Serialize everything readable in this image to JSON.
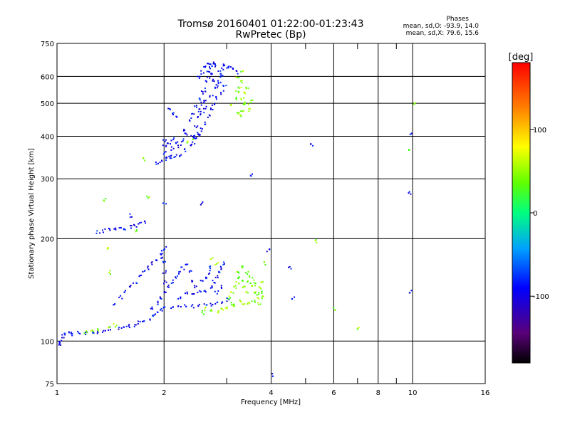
{
  "chart_data": {
    "type": "scatter",
    "title": "Tromsø 20160401 01:22:00-01:23:43",
    "subtitle": "RwPretec (Bp)",
    "xlabel": "Frequency [MHz]",
    "ylabel": "Stationary phase Virtual Height [km]",
    "x_scale": "log",
    "y_scale": "log",
    "xlim": [
      1,
      16
    ],
    "ylim": [
      75,
      750
    ],
    "x_ticks": [
      1,
      2,
      4,
      6,
      8,
      10,
      16
    ],
    "x_minor": [
      3,
      5,
      7,
      9
    ],
    "y_ticks": [
      75,
      100,
      200,
      300,
      400,
      500,
      600,
      750
    ],
    "grid": true,
    "stats": {
      "header": "Phases",
      "line1": "mean, sd,O: -93.9, 14.0",
      "line2": "mean, sd,X:  79.6, 15.6"
    },
    "colorbar": {
      "label": "[deg]",
      "range": [
        -180,
        180
      ],
      "ticks": [
        100,
        0,
        -100
      ]
    },
    "series": [
      {
        "name": "O",
        "mean_phase": -93.9,
        "sd": 14.0,
        "points": [
          [
            1.01,
            98
          ],
          [
            1.02,
            100
          ],
          [
            1.03,
            104
          ],
          [
            1.05,
            105
          ],
          [
            1.08,
            106
          ],
          [
            1.1,
            105
          ],
          [
            1.15,
            106
          ],
          [
            1.2,
            106
          ],
          [
            1.25,
            107
          ],
          [
            1.3,
            107
          ],
          [
            1.35,
            108
          ],
          [
            1.4,
            109
          ],
          [
            1.5,
            109
          ],
          [
            1.55,
            110
          ],
          [
            1.6,
            111
          ],
          [
            1.65,
            112
          ],
          [
            1.7,
            114
          ],
          [
            1.75,
            115
          ],
          [
            1.8,
            117
          ],
          [
            1.85,
            120
          ],
          [
            1.9,
            122
          ],
          [
            1.95,
            124
          ],
          [
            2.0,
            125
          ],
          [
            2.1,
            126
          ],
          [
            2.2,
            127
          ],
          [
            2.3,
            127
          ],
          [
            2.4,
            127
          ],
          [
            2.5,
            128
          ],
          [
            2.6,
            128
          ],
          [
            2.7,
            129
          ],
          [
            2.8,
            130
          ],
          [
            2.9,
            131
          ],
          [
            3.0,
            133
          ],
          [
            1.45,
            128
          ],
          [
            1.5,
            135
          ],
          [
            1.55,
            140
          ],
          [
            1.6,
            145
          ],
          [
            1.65,
            150
          ],
          [
            1.7,
            155
          ],
          [
            1.75,
            160
          ],
          [
            1.8,
            165
          ],
          [
            1.85,
            170
          ],
          [
            1.9,
            175
          ],
          [
            1.95,
            180
          ],
          [
            1.98,
            185
          ],
          [
            1.85,
            125
          ],
          [
            1.9,
            130
          ],
          [
            1.95,
            135
          ],
          [
            2.0,
            140
          ],
          [
            2.0,
            150
          ],
          [
            2.0,
            160
          ],
          [
            2.0,
            170
          ],
          [
            2.05,
            145
          ],
          [
            2.1,
            150
          ],
          [
            2.15,
            155
          ],
          [
            2.2,
            160
          ],
          [
            2.25,
            165
          ],
          [
            2.3,
            170
          ],
          [
            2.35,
            160
          ],
          [
            2.4,
            150
          ],
          [
            2.45,
            145
          ],
          [
            2.5,
            140
          ],
          [
            2.55,
            150
          ],
          [
            2.6,
            155
          ],
          [
            2.65,
            160
          ],
          [
            2.7,
            165
          ],
          [
            2.75,
            150
          ],
          [
            2.8,
            155
          ],
          [
            2.85,
            160
          ],
          [
            2.9,
            165
          ],
          [
            2.95,
            170
          ],
          [
            2.6,
            140
          ],
          [
            2.7,
            145
          ],
          [
            2.8,
            140
          ],
          [
            2.9,
            145
          ],
          [
            2.2,
            135
          ],
          [
            2.3,
            140
          ],
          [
            2.4,
            138
          ],
          [
            1.3,
            210
          ],
          [
            1.35,
            212
          ],
          [
            1.4,
            213
          ],
          [
            1.45,
            214
          ],
          [
            1.5,
            215
          ],
          [
            1.55,
            216
          ],
          [
            1.6,
            218
          ],
          [
            1.65,
            220
          ],
          [
            1.7,
            222
          ],
          [
            1.75,
            224
          ],
          [
            1.6,
            235
          ],
          [
            1.9,
            335
          ],
          [
            1.95,
            340
          ],
          [
            2.0,
            345
          ],
          [
            2.05,
            348
          ],
          [
            2.1,
            350
          ],
          [
            2.15,
            352
          ],
          [
            2.2,
            355
          ],
          [
            2.3,
            365
          ],
          [
            2.35,
            380
          ],
          [
            2.4,
            400
          ],
          [
            2.45,
            430
          ],
          [
            2.5,
            460
          ],
          [
            2.55,
            500
          ],
          [
            2.6,
            550
          ],
          [
            2.65,
            600
          ],
          [
            2.7,
            640
          ],
          [
            2.0,
            360
          ],
          [
            2.0,
            375
          ],
          [
            2.0,
            390
          ],
          [
            2.05,
            380
          ],
          [
            2.1,
            370
          ],
          [
            2.1,
            395
          ],
          [
            2.15,
            385
          ],
          [
            2.2,
            375
          ],
          [
            2.25,
            390
          ],
          [
            2.3,
            410
          ],
          [
            2.25,
            420
          ],
          [
            2.35,
            450
          ],
          [
            2.4,
            470
          ],
          [
            2.45,
            490
          ],
          [
            2.5,
            520
          ],
          [
            2.55,
            540
          ],
          [
            2.6,
            580
          ],
          [
            2.65,
            620
          ],
          [
            2.7,
            650
          ],
          [
            2.75,
            660
          ],
          [
            2.8,
            650
          ],
          [
            2.85,
            620
          ],
          [
            2.9,
            600
          ],
          [
            2.95,
            560
          ],
          [
            2.9,
            540
          ],
          [
            2.8,
            520
          ],
          [
            2.75,
            500
          ],
          [
            2.7,
            480
          ],
          [
            2.65,
            460
          ],
          [
            2.6,
            440
          ],
          [
            2.55,
            420
          ],
          [
            2.5,
            405
          ],
          [
            2.45,
            395
          ],
          [
            2.4,
            385
          ],
          [
            2.5,
            600
          ],
          [
            2.55,
            620
          ],
          [
            2.6,
            640
          ],
          [
            2.65,
            655
          ],
          [
            2.7,
            610
          ],
          [
            2.75,
            590
          ],
          [
            2.8,
            570
          ],
          [
            2.6,
            510
          ],
          [
            2.7,
            530
          ],
          [
            2.8,
            560
          ],
          [
            2.85,
            580
          ],
          [
            2.9,
            630
          ],
          [
            2.95,
            650
          ],
          [
            2.5,
            480
          ],
          [
            2.55,
            470
          ],
          [
            2.6,
            490
          ],
          [
            2.05,
            480
          ],
          [
            2.1,
            470
          ],
          [
            2.15,
            460
          ],
          [
            2.4,
            400
          ],
          [
            2.5,
            410
          ],
          [
            3.0,
            640
          ],
          [
            3.05,
            650
          ],
          [
            3.1,
            630
          ],
          [
            3.2,
            620
          ],
          [
            3.5,
            310
          ],
          [
            2.55,
            255
          ],
          [
            2.0,
            255
          ],
          [
            2.0,
            188
          ],
          [
            1.95,
            178
          ],
          [
            4.6,
            135
          ],
          [
            4.5,
            165
          ],
          [
            3.9,
            185
          ],
          [
            9.8,
            410
          ],
          [
            9.8,
            275
          ],
          [
            9.8,
            140
          ],
          [
            4.05,
            80
          ],
          [
            5.2,
            380
          ]
        ]
      },
      {
        "name": "X",
        "mean_phase": 79.6,
        "sd": 15.6,
        "points": [
          [
            3.1,
            140
          ],
          [
            3.15,
            145
          ],
          [
            3.2,
            150
          ],
          [
            3.25,
            155
          ],
          [
            3.3,
            150
          ],
          [
            3.35,
            145
          ],
          [
            3.4,
            140
          ],
          [
            3.45,
            150
          ],
          [
            3.5,
            155
          ],
          [
            3.55,
            145
          ],
          [
            3.6,
            140
          ],
          [
            3.65,
            135
          ],
          [
            3.7,
            130
          ],
          [
            3.75,
            140
          ],
          [
            3.8,
            135
          ],
          [
            3.6,
            150
          ],
          [
            3.4,
            160
          ],
          [
            3.3,
            165
          ],
          [
            3.2,
            160
          ],
          [
            3.1,
            130
          ],
          [
            3.0,
            125
          ],
          [
            3.05,
            135
          ],
          [
            3.15,
            128
          ],
          [
            3.25,
            132
          ],
          [
            3.35,
            128
          ],
          [
            3.45,
            130
          ],
          [
            3.55,
            132
          ],
          [
            3.65,
            138
          ],
          [
            3.7,
            145
          ],
          [
            3.75,
            150
          ],
          [
            2.6,
            125
          ],
          [
            2.7,
            123
          ],
          [
            2.8,
            122
          ],
          [
            2.9,
            124
          ],
          [
            2.55,
            122
          ],
          [
            3.1,
            500
          ],
          [
            3.15,
            520
          ],
          [
            3.2,
            540
          ],
          [
            3.25,
            560
          ],
          [
            3.3,
            580
          ],
          [
            3.35,
            540
          ],
          [
            3.4,
            500
          ],
          [
            3.45,
            480
          ],
          [
            3.5,
            510
          ],
          [
            3.3,
            480
          ],
          [
            3.25,
            460
          ],
          [
            3.2,
            470
          ],
          [
            3.3,
            520
          ],
          [
            3.4,
            560
          ],
          [
            3.2,
            600
          ],
          [
            3.3,
            620
          ],
          [
            3.35,
            500
          ],
          [
            1.2,
            107
          ],
          [
            1.25,
            108
          ],
          [
            1.3,
            109
          ],
          [
            1.4,
            110
          ],
          [
            1.45,
            112
          ],
          [
            1.35,
            262
          ],
          [
            1.38,
            188
          ],
          [
            1.4,
            160
          ],
          [
            1.65,
            212
          ],
          [
            1.8,
            265
          ],
          [
            1.75,
            345
          ],
          [
            2.3,
            385
          ],
          [
            2.4,
            390
          ],
          [
            7.0,
            110
          ],
          [
            6.0,
            125
          ],
          [
            5.3,
            198
          ],
          [
            10.0,
            500
          ],
          [
            9.8,
            365
          ],
          [
            3.8,
            170
          ],
          [
            2.7,
            175
          ],
          [
            2.8,
            170
          ]
        ]
      }
    ]
  }
}
